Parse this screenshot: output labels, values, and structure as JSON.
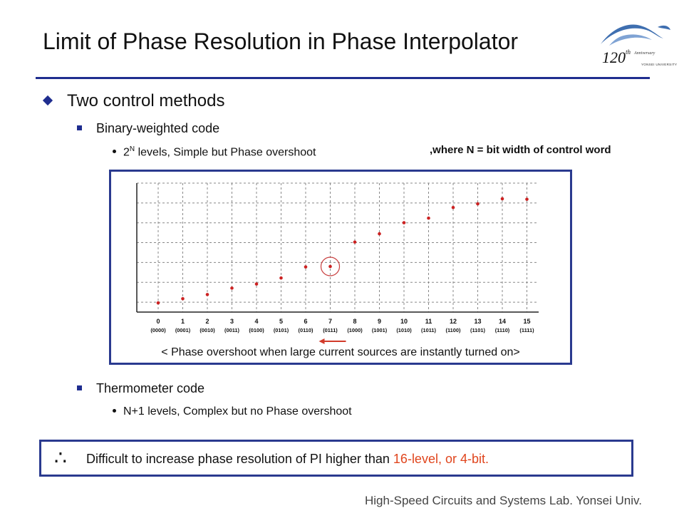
{
  "slide": {
    "title": "Limit of Phase Resolution in Phase Interpolator",
    "logo": {
      "big": "120",
      "sup": "th",
      "anniv": "Anniversary",
      "univ": "YONSEI UNIVERSITY"
    },
    "bullet_main": "Two control methods",
    "binary_heading": "Binary-weighted code",
    "binary_desc_base": "2",
    "binary_desc_sup": "N",
    "binary_desc_rest": " levels, Simple but Phase overshoot",
    "where_note": ",where N = bit width of control word",
    "chart_caption": "< Phase overshoot when large current sources are instantly turned on>",
    "thermo_heading": "Thermometer code",
    "thermo_desc": "N+1 levels, Complex but no Phase overshoot",
    "therefore_symbol": "∴",
    "conclusion_text": "Difficult to increase phase resolution of PI higher than ",
    "conclusion_highlight": "16-level, or 4-bit.",
    "footer": "High-Speed Circuits and Systems Lab. Yonsei Univ.",
    "colors": {
      "accent_blue": "#2a3a8f",
      "highlight_red": "#e0451d",
      "marker_red": "#cc2222"
    }
  },
  "chart_data": {
    "type": "scatter",
    "categories": [
      "0",
      "1",
      "2",
      "3",
      "4",
      "5",
      "6",
      "7",
      "8",
      "9",
      "10",
      "11",
      "12",
      "13",
      "14",
      "15"
    ],
    "codes": [
      "(0000)",
      "(0001)",
      "(0010)",
      "(0011)",
      "(0100)",
      "(0101)",
      "(0110)",
      "(0111)",
      "(1000)",
      "(1001)",
      "(1010)",
      "(1011)",
      "(1100)",
      "(1101)",
      "(1110)",
      "(1111)"
    ],
    "values": [
      0.3,
      0.75,
      1.2,
      1.9,
      2.35,
      3.0,
      4.2,
      4.25,
      6.9,
      7.8,
      9.0,
      9.5,
      10.65,
      11.05,
      11.6,
      11.55
    ],
    "ylim": [
      -0.7,
      13.3
    ],
    "grid": true,
    "highlight_index": 7,
    "arrow_under_index": 7
  }
}
